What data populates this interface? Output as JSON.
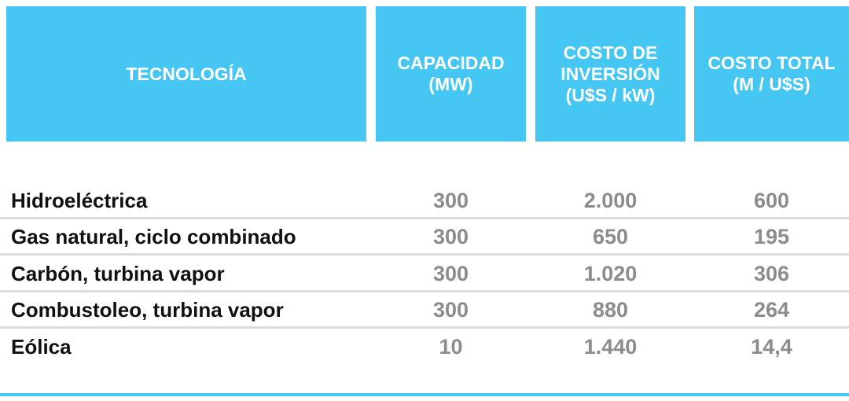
{
  "table": {
    "header": [
      "TECNOLOGÍA",
      "CAPACIDAD\n(MW)",
      "COSTO DE\nINVERSIÓN\n(U$S / kW)",
      "COSTO TOTAL\n(M / U$S)"
    ],
    "rows": [
      [
        "Hidroeléctrica",
        "300",
        "2.000",
        "600"
      ],
      [
        "Gas natural, ciclo combinado",
        "300",
        "650",
        "195"
      ],
      [
        "Carbón, turbina vapor",
        "300",
        "1.020",
        "306"
      ],
      [
        "Combustoleo, turbina vapor",
        "300",
        "880",
        "264"
      ],
      [
        "Eólica",
        "10",
        "1.440",
        "14,4"
      ]
    ]
  }
}
